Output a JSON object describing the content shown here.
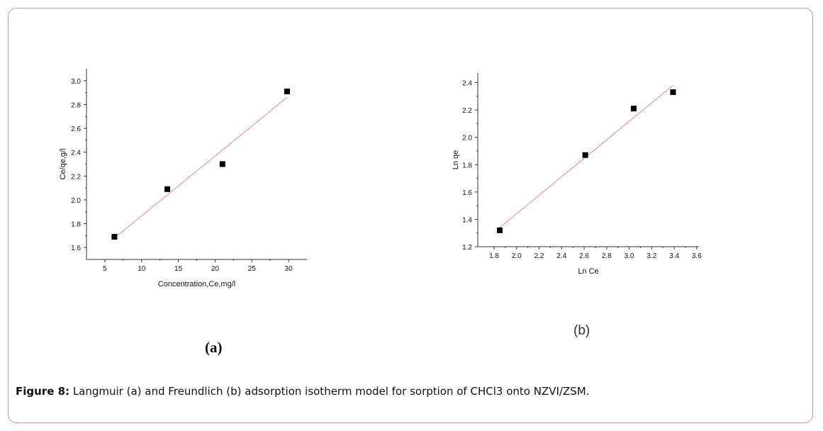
{
  "colors": {
    "frame": "#c896ab",
    "fit_line": "#e08a8a",
    "points": "#000000"
  },
  "caption": {
    "label": "Figure 8:",
    "text": " Langmuir (a) and Freundlich (b) adsorption isotherm model for sorption of CHCl3 onto NZVI/ZSM."
  },
  "chart_data": [
    {
      "type": "scatter",
      "panel_label": "(a)",
      "title": "",
      "xlabel": "Concentration,Ce,mg/l",
      "ylabel": "Ce/qe,g/l",
      "xlim": [
        2.5,
        32.5
      ],
      "ylim": [
        1.5,
        3.1
      ],
      "xticks": [
        5,
        10,
        15,
        20,
        25,
        30
      ],
      "xtick_labels": [
        "5",
        "10",
        "15",
        "20",
        "25",
        "30"
      ],
      "yticks": [
        1.6,
        1.8,
        2.0,
        2.2,
        2.4,
        2.6,
        2.8,
        3.0
      ],
      "ytick_labels": [
        "1.6",
        "1.8",
        "2.0",
        "2.2",
        "2.4",
        "2.6",
        "2.8",
        "3.0"
      ],
      "points": {
        "x": [
          6.3,
          13.5,
          21.0,
          29.8
        ],
        "y": [
          1.69,
          2.09,
          2.3,
          2.91
        ]
      },
      "fit_line": {
        "x": [
          6.3,
          29.8
        ],
        "y": [
          1.68,
          2.86
        ]
      },
      "grid": false
    },
    {
      "type": "scatter",
      "panel_label": "(b)",
      "title": "",
      "xlabel": "Ln Ce",
      "ylabel": "Ln qe",
      "xlim": [
        1.655,
        3.62
      ],
      "ylim": [
        1.2,
        2.47
      ],
      "xticks": [
        1.8,
        2.0,
        2.2,
        2.4,
        2.6,
        2.8,
        3.0,
        3.2,
        3.4,
        3.6
      ],
      "xtick_labels": [
        "1.8",
        "2.0",
        "2.2",
        "2.4",
        "2.6",
        "2.8",
        "3.0",
        "3.2",
        "3.4",
        "3.6"
      ],
      "yticks": [
        1.2,
        1.4,
        1.6,
        1.8,
        2.0,
        2.2,
        2.4
      ],
      "ytick_labels": [
        "1.2",
        "1.4",
        "1.6",
        "1.8",
        "2.0",
        "2.2",
        "2.4"
      ],
      "points": {
        "x": [
          1.85,
          2.61,
          3.04,
          3.39
        ],
        "y": [
          1.32,
          1.87,
          2.21,
          2.33
        ]
      },
      "fit_line": {
        "x": [
          1.85,
          3.39
        ],
        "y": [
          1.34,
          2.38
        ]
      },
      "grid": false
    }
  ]
}
